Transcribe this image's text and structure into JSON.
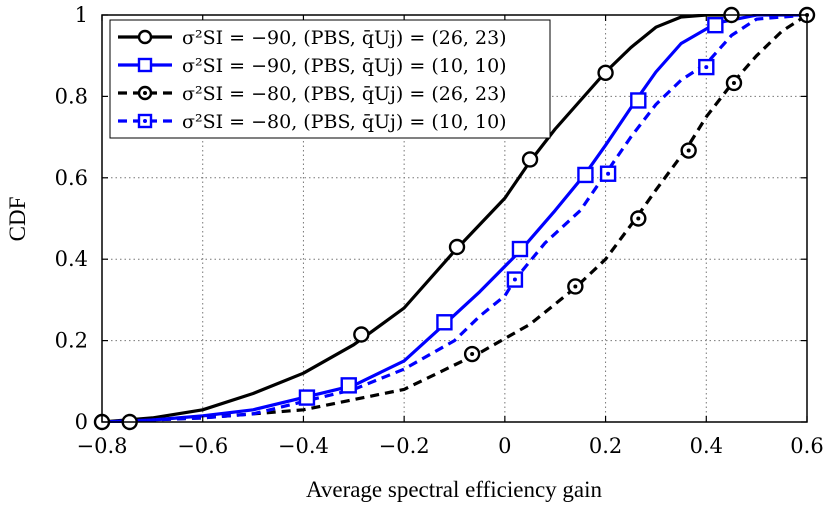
{
  "chart_data": {
    "type": "line",
    "xlabel": "Average spectral efficiency gain",
    "ylabel": "CDF",
    "xlim": [
      -0.8,
      0.6
    ],
    "ylim": [
      0,
      1
    ],
    "xticks": [
      -0.8,
      -0.6,
      -0.4,
      -0.2,
      0,
      0.2,
      0.4,
      0.6
    ],
    "yticks": [
      0,
      0.2,
      0.4,
      0.6,
      0.8,
      1
    ],
    "xtick_labels": [
      "−0.8",
      "−0.6",
      "−0.4",
      "−0.2",
      "0",
      "0.2",
      "0.4",
      "0.6"
    ],
    "ytick_labels": [
      "0",
      "0.2",
      "0.4",
      "0.6",
      "0.8",
      "1"
    ],
    "grid": true,
    "legend_position": "top-left",
    "series": [
      {
        "name": "σ²SI = −90, (PBS, q̄Uj) = (26, 23)",
        "color": "#000000",
        "dash": "solid",
        "marker": "circle",
        "points": [
          [
            -0.8,
            0.0
          ],
          [
            -0.7,
            0.01
          ],
          [
            -0.6,
            0.03
          ],
          [
            -0.5,
            0.07
          ],
          [
            -0.4,
            0.12
          ],
          [
            -0.3,
            0.19
          ],
          [
            -0.2,
            0.28
          ],
          [
            -0.1,
            0.42
          ],
          [
            0.0,
            0.55
          ],
          [
            0.05,
            0.64
          ],
          [
            0.1,
            0.72
          ],
          [
            0.15,
            0.79
          ],
          [
            0.2,
            0.86
          ],
          [
            0.25,
            0.92
          ],
          [
            0.3,
            0.97
          ],
          [
            0.35,
            0.995
          ],
          [
            0.4,
            1.0
          ],
          [
            0.45,
            1.0
          ]
        ],
        "markers": [
          [
            -0.8,
            0.0
          ],
          [
            -0.745,
            0.0
          ],
          [
            -0.285,
            0.215
          ],
          [
            -0.095,
            0.43
          ],
          [
            0.05,
            0.645
          ],
          [
            0.2,
            0.858
          ],
          [
            0.45,
            1.0
          ]
        ]
      },
      {
        "name": "σ²SI = −90, (PBS, q̄Uj) = (10, 10)",
        "color": "#0000ff",
        "dash": "solid",
        "marker": "square",
        "points": [
          [
            -0.8,
            0.0
          ],
          [
            -0.7,
            0.005
          ],
          [
            -0.6,
            0.015
          ],
          [
            -0.5,
            0.03
          ],
          [
            -0.4,
            0.06
          ],
          [
            -0.3,
            0.09
          ],
          [
            -0.2,
            0.15
          ],
          [
            -0.12,
            0.24
          ],
          [
            -0.05,
            0.32
          ],
          [
            0.03,
            0.42
          ],
          [
            0.1,
            0.52
          ],
          [
            0.16,
            0.61
          ],
          [
            0.2,
            0.68
          ],
          [
            0.26,
            0.79
          ],
          [
            0.3,
            0.86
          ],
          [
            0.35,
            0.93
          ],
          [
            0.42,
            0.98
          ],
          [
            0.5,
            1.0
          ],
          [
            0.6,
            1.0
          ]
        ],
        "markers": [
          [
            -0.393,
            0.06
          ],
          [
            -0.31,
            0.09
          ],
          [
            -0.12,
            0.245
          ],
          [
            0.03,
            0.425
          ],
          [
            0.16,
            0.607
          ],
          [
            0.265,
            0.79
          ],
          [
            0.418,
            0.975
          ]
        ]
      },
      {
        "name": "σ²SI = −80, (PBS, q̄Uj) = (26, 23)",
        "color": "#000000",
        "dash": "dashed",
        "marker": "circle-dot",
        "points": [
          [
            -0.8,
            0.0
          ],
          [
            -0.6,
            0.01
          ],
          [
            -0.4,
            0.03
          ],
          [
            -0.2,
            0.08
          ],
          [
            -0.1,
            0.14
          ],
          [
            -0.05,
            0.17
          ],
          [
            0.05,
            0.24
          ],
          [
            0.14,
            0.33
          ],
          [
            0.2,
            0.4
          ],
          [
            0.26,
            0.5
          ],
          [
            0.3,
            0.57
          ],
          [
            0.36,
            0.67
          ],
          [
            0.4,
            0.75
          ],
          [
            0.45,
            0.83
          ],
          [
            0.5,
            0.9
          ],
          [
            0.55,
            0.96
          ],
          [
            0.6,
            1.0
          ]
        ],
        "markers": [
          [
            -0.065,
            0.167
          ],
          [
            0.14,
            0.333
          ],
          [
            0.265,
            0.5
          ],
          [
            0.365,
            0.667
          ],
          [
            0.455,
            0.833
          ],
          [
            0.6,
            1.0
          ]
        ]
      },
      {
        "name": "σ²SI = −80, (PBS, q̄Uj) = (10, 10)",
        "color": "#0000ff",
        "dash": "dashed",
        "marker": "square-dot",
        "points": [
          [
            -0.8,
            0.0
          ],
          [
            -0.6,
            0.01
          ],
          [
            -0.5,
            0.02
          ],
          [
            -0.4,
            0.05
          ],
          [
            -0.3,
            0.08
          ],
          [
            -0.2,
            0.13
          ],
          [
            -0.1,
            0.2
          ],
          [
            -0.05,
            0.26
          ],
          [
            0.0,
            0.31
          ],
          [
            0.02,
            0.35
          ],
          [
            0.08,
            0.44
          ],
          [
            0.15,
            0.52
          ],
          [
            0.2,
            0.61
          ],
          [
            0.25,
            0.7
          ],
          [
            0.3,
            0.78
          ],
          [
            0.35,
            0.84
          ],
          [
            0.4,
            0.88
          ],
          [
            0.45,
            0.95
          ],
          [
            0.5,
            0.99
          ],
          [
            0.6,
            1.0
          ]
        ],
        "markers": [
          [
            0.02,
            0.35
          ],
          [
            0.205,
            0.61
          ],
          [
            0.4,
            0.872
          ]
        ]
      }
    ]
  }
}
